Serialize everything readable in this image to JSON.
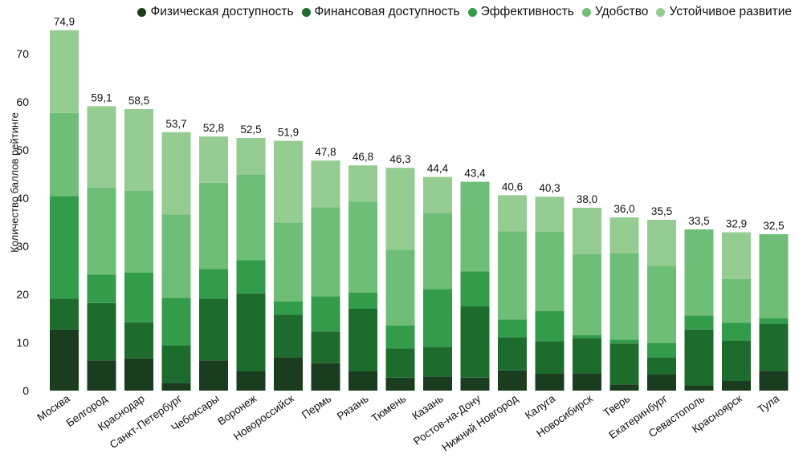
{
  "chart_data": {
    "type": "bar",
    "stacked": true,
    "ylabel": "Количество баллов рейтинге",
    "ylim": [
      0,
      75
    ],
    "yticks": [
      0,
      10,
      20,
      30,
      40,
      50,
      60,
      70
    ],
    "legend_position": "top-right",
    "categories": [
      "Москва",
      "Белгород",
      "Краснодар",
      "Санкт-Петербург",
      "Чебоксары",
      "Воронеж",
      "Новороссийск",
      "Пермь",
      "Рязань",
      "Тюмень",
      "Казань",
      "Ростов-на-Дону",
      "Нижний Новгород",
      "Калуга",
      "Новосибирск",
      "Тверь",
      "Екатеринбург",
      "Севастополь",
      "Красноярск",
      "Тула"
    ],
    "total_labels": [
      "74,9",
      "59,1",
      "58,5",
      "53,7",
      "52,8",
      "52,5",
      "51,9",
      "47,8",
      "46,8",
      "46,3",
      "44,4",
      "43,4",
      "40,6",
      "40,3",
      "38,0",
      "36,0",
      "35,5",
      "33,5",
      "32,9",
      "32,5"
    ],
    "totals": [
      74.9,
      59.1,
      58.5,
      53.7,
      52.8,
      52.5,
      51.9,
      47.8,
      46.8,
      46.3,
      44.4,
      43.4,
      40.6,
      40.3,
      38.0,
      36.0,
      35.5,
      33.5,
      32.9,
      32.5
    ],
    "series": [
      {
        "name": "Физическая доступность",
        "color": "#1b3d1f",
        "values": [
          12.7,
          6.3,
          6.7,
          1.6,
          6.3,
          4.0,
          6.9,
          5.7,
          4.0,
          2.7,
          2.9,
          2.7,
          4.2,
          3.5,
          3.6,
          1.3,
          3.4,
          1.0,
          2.0,
          4.1
        ]
      },
      {
        "name": "Финансовая доступность",
        "color": "#1e6b2e",
        "values": [
          6.4,
          11.9,
          7.5,
          7.8,
          12.8,
          16.2,
          8.9,
          6.6,
          13.0,
          6.1,
          6.2,
          14.8,
          6.8,
          6.8,
          7.3,
          8.5,
          3.5,
          11.7,
          8.4,
          9.8
        ]
      },
      {
        "name": "Эффективность",
        "color": "#339c4b",
        "values": [
          21.3,
          5.9,
          10.3,
          9.9,
          6.2,
          6.9,
          2.7,
          7.3,
          3.4,
          4.7,
          12.0,
          7.3,
          3.8,
          6.2,
          0.6,
          0.8,
          3.0,
          2.9,
          3.7,
          1.1
        ]
      },
      {
        "name": "Удобство",
        "color": "#6fbe78",
        "values": [
          17.3,
          18.1,
          17.0,
          17.3,
          17.9,
          17.8,
          16.4,
          18.5,
          18.9,
          15.8,
          15.8,
          18.6,
          18.3,
          16.5,
          16.9,
          17.9,
          16.0,
          17.9,
          9.1,
          17.5
        ]
      },
      {
        "name": "Устойчивое развитие",
        "color": "#94cc92",
        "values": [
          17.2,
          16.9,
          17.0,
          17.1,
          9.6,
          7.6,
          17.0,
          9.7,
          7.5,
          17.0,
          7.5,
          0,
          7.5,
          7.3,
          9.6,
          7.5,
          9.6,
          0,
          9.7,
          0
        ]
      }
    ]
  }
}
